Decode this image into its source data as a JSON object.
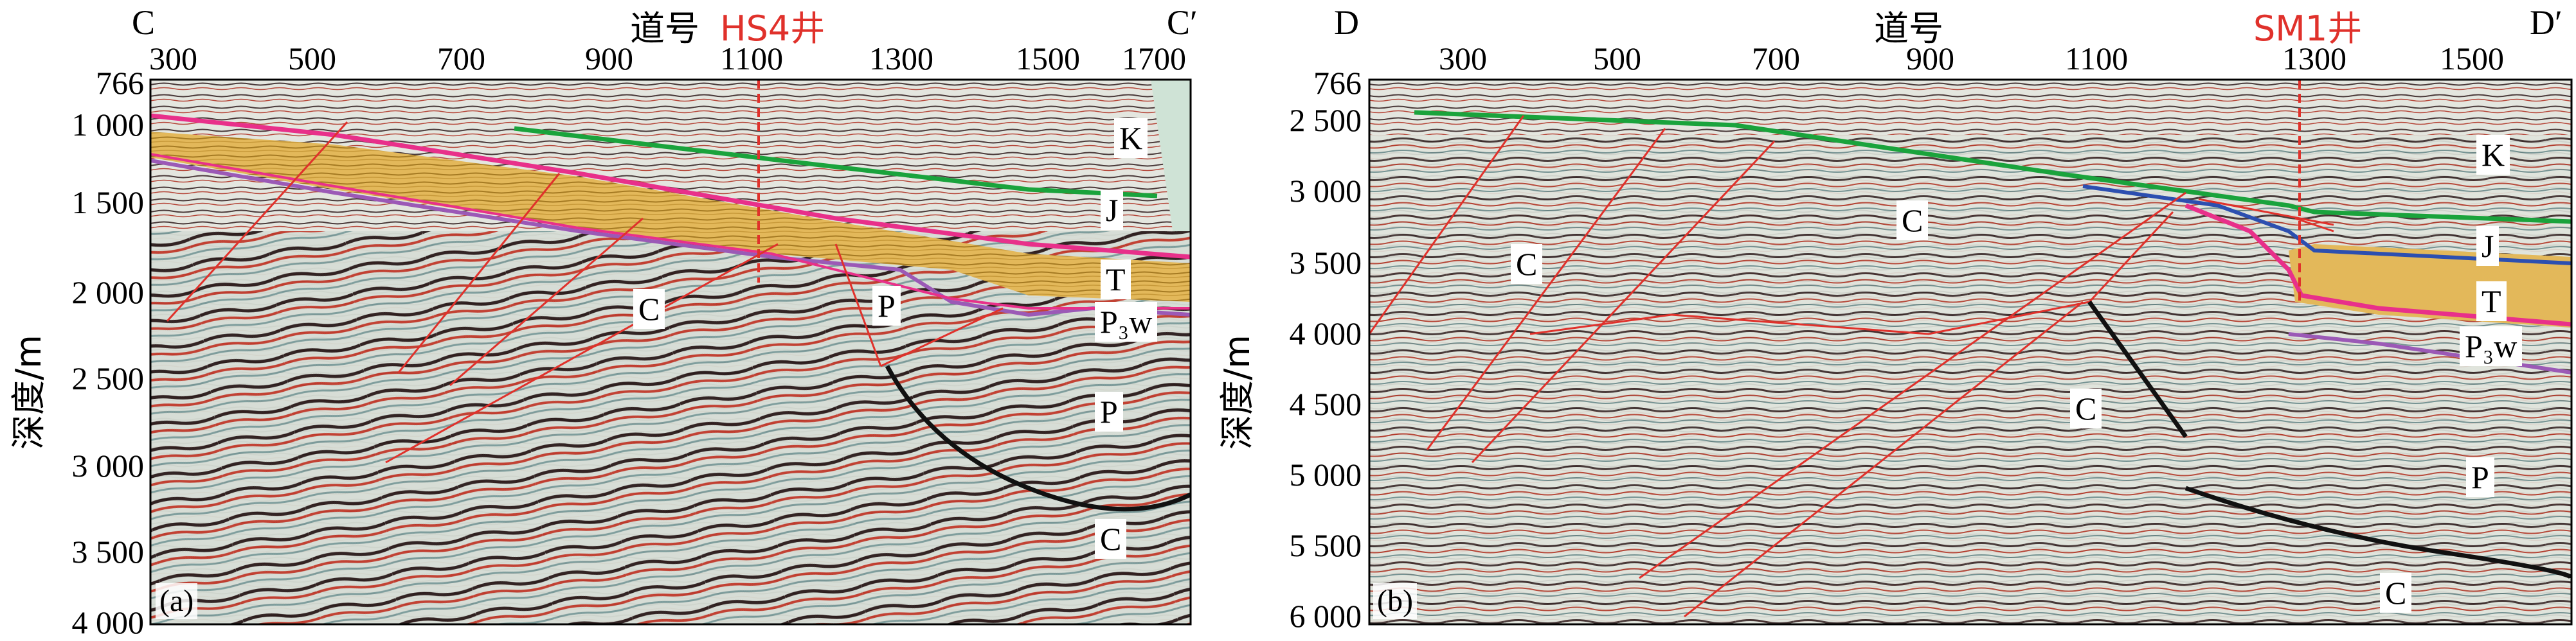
{
  "panel_a": {
    "left_marker": "C",
    "right_marker": "C′",
    "trace_axis_title": "道号",
    "well_name": "HS4井",
    "x_ticks": [
      "300",
      "500",
      "700",
      "900",
      "1100",
      "1300",
      "1500",
      "1700"
    ],
    "y_ticks": [
      "766",
      "1 000",
      "1 500",
      "2 000",
      "2 500",
      "3 000",
      "3 500",
      "4 000"
    ],
    "y_label": "深度/m",
    "panel_label": "(a)",
    "strata_labels": [
      "K",
      "J",
      "T",
      "P₃w",
      "P",
      "C",
      "C",
      "P"
    ],
    "colors": {
      "well": "#e0312b",
      "K_base": "#1aa33c",
      "J_base": "#e8308a",
      "T_fill": "#e6b84a",
      "P3w": "#9b59b6",
      "fault": "#e0312b",
      "thrust": "#111111"
    }
  },
  "panel_b": {
    "left_marker": "D",
    "right_marker": "D′",
    "trace_axis_title": "道号",
    "well_name": "SM1井",
    "x_ticks": [
      "300",
      "500",
      "700",
      "900",
      "1100",
      "1300",
      "1500"
    ],
    "y_ticks": [
      "766",
      "2 500",
      "3 000",
      "3 500",
      "4 000",
      "4 500",
      "5 000",
      "5 500",
      "6 000"
    ],
    "y_label": "深度/m",
    "panel_label": "(b)",
    "strata_labels": [
      "K",
      "J",
      "T",
      "P₃w",
      "P",
      "C",
      "C",
      "C",
      "C"
    ],
    "colors": {
      "well": "#e0312b",
      "K_base": "#1aa33c",
      "J_base": "#2c4fb0",
      "T_base": "#e8308a",
      "P3w": "#9b59b6",
      "fault": "#e0312b",
      "thrust": "#111111"
    }
  }
}
